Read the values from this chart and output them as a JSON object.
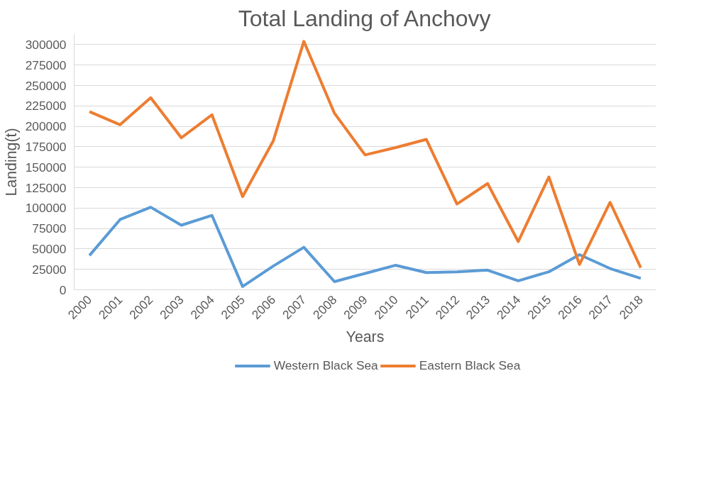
{
  "chart_data": {
    "type": "line",
    "title": "Total Landing of Anchovy",
    "xlabel": "Years",
    "ylabel": "Landing(t)",
    "categories": [
      "2000",
      "2001",
      "2002",
      "2003",
      "2004",
      "2005",
      "2006",
      "2007",
      "2008",
      "2009",
      "2010",
      "2011",
      "2012",
      "2013",
      "2014",
      "2015",
      "2016",
      "2017",
      "2018"
    ],
    "series": [
      {
        "name": "Western Black Sea",
        "color": "#5b9bd5",
        "values": [
          42000,
          86000,
          101000,
          79000,
          91000,
          4000,
          29000,
          52000,
          10000,
          20000,
          30000,
          21000,
          22000,
          24000,
          11000,
          22000,
          43000,
          26000,
          14000
        ]
      },
      {
        "name": "Eastern Black Sea",
        "color": "#ed7d31",
        "values": [
          218000,
          202000,
          235000,
          186000,
          214000,
          114000,
          182000,
          304000,
          216000,
          165000,
          174000,
          184000,
          105000,
          130000,
          59000,
          138000,
          31000,
          107000,
          27000
        ]
      }
    ],
    "ylim": [
      0,
      312500
    ],
    "yticks": [
      0,
      25000,
      50000,
      75000,
      100000,
      125000,
      150000,
      175000,
      200000,
      225000,
      250000,
      275000,
      300000
    ],
    "grid": "y",
    "legend": "bottom",
    "marker": "none",
    "line_style": "solid"
  }
}
